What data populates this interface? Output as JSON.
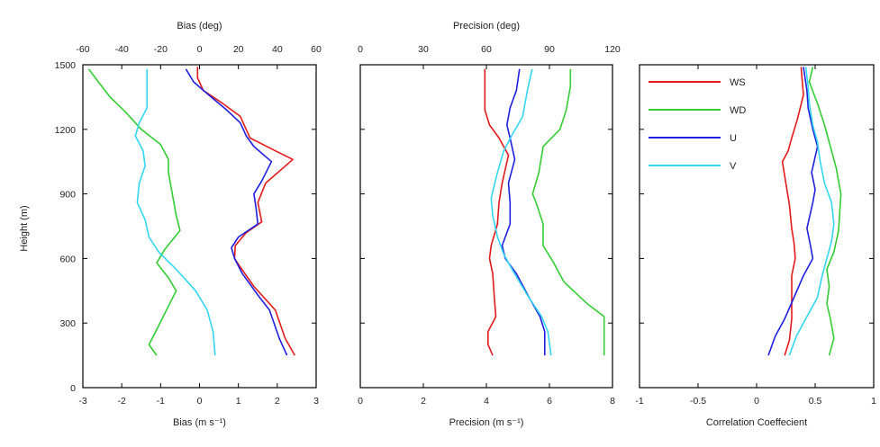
{
  "figure": {
    "ylabel": "Height (m)",
    "yticks": [
      0,
      300,
      600,
      900,
      1200,
      1500
    ],
    "ylim": [
      0,
      1500
    ]
  },
  "legend": [
    {
      "key": "WS",
      "color": "#e31a1c"
    },
    {
      "key": "WD",
      "color": "#33cc33"
    },
    {
      "key": "U",
      "color": "#1f1fe0"
    },
    {
      "key": "V",
      "color": "#33d6f0"
    }
  ],
  "chart_data": [
    {
      "type": "line",
      "xlabel": "Bias (m s⁻¹)",
      "xlim": [
        -3,
        3
      ],
      "xticks": [
        -3,
        -2,
        -1,
        0,
        1,
        2,
        3
      ],
      "top_xlabel": "Bias (deg)",
      "top_xlim": [
        -60,
        60
      ],
      "top_xticks": [
        -60,
        -40,
        -20,
        0,
        20,
        40,
        60
      ],
      "ylabel": "Height (m)",
      "ylim": [
        0,
        1500
      ],
      "series": [
        {
          "name": "WS",
          "axis": "bottom",
          "color": "#e31a1c",
          "points": [
            [
              2.45,
              150
            ],
            [
              2.2,
              230
            ],
            [
              1.95,
              360
            ],
            [
              1.4,
              470
            ],
            [
              1.05,
              560
            ],
            [
              0.9,
              600
            ],
            [
              0.92,
              660
            ],
            [
              1.2,
              720
            ],
            [
              1.6,
              770
            ],
            [
              1.5,
              860
            ],
            [
              1.7,
              950
            ],
            [
              2.4,
              1060
            ],
            [
              1.95,
              1100
            ],
            [
              1.3,
              1160
            ],
            [
              1.2,
              1200
            ],
            [
              1.05,
              1260
            ],
            [
              0.6,
              1320
            ],
            [
              0.1,
              1380
            ],
            [
              -0.05,
              1440
            ],
            [
              -0.05,
              1490
            ]
          ]
        },
        {
          "name": "WD",
          "axis": "top",
          "color": "#33cc33",
          "points": [
            [
              -22,
              150
            ],
            [
              -26,
              200
            ],
            [
              -22,
              270
            ],
            [
              -17,
              360
            ],
            [
              -12,
              450
            ],
            [
              -16,
              510
            ],
            [
              -22,
              580
            ],
            [
              -18,
              640
            ],
            [
              -10,
              730
            ],
            [
              -12,
              800
            ],
            [
              -14,
              900
            ],
            [
              -16,
              1000
            ],
            [
              -16,
              1060
            ],
            [
              -20,
              1130
            ],
            [
              -30,
              1200
            ],
            [
              -38,
              1280
            ],
            [
              -46,
              1350
            ],
            [
              -52,
              1420
            ],
            [
              -57,
              1480
            ]
          ]
        },
        {
          "name": "U",
          "axis": "bottom",
          "color": "#1f1fe0",
          "points": [
            [
              2.25,
              150
            ],
            [
              2.05,
              230
            ],
            [
              1.8,
              360
            ],
            [
              1.5,
              430
            ],
            [
              1.1,
              530
            ],
            [
              0.9,
              600
            ],
            [
              0.82,
              650
            ],
            [
              1.0,
              700
            ],
            [
              1.5,
              760
            ],
            [
              1.45,
              840
            ],
            [
              1.4,
              900
            ],
            [
              1.6,
              960
            ],
            [
              1.85,
              1050
            ],
            [
              1.4,
              1120
            ],
            [
              1.2,
              1170
            ],
            [
              1.05,
              1230
            ],
            [
              0.7,
              1290
            ],
            [
              0.3,
              1350
            ],
            [
              -0.15,
              1420
            ],
            [
              -0.35,
              1480
            ]
          ]
        },
        {
          "name": "V",
          "axis": "bottom",
          "color": "#33d6f0",
          "points": [
            [
              0.4,
              150
            ],
            [
              0.35,
              260
            ],
            [
              0.2,
              360
            ],
            [
              -0.1,
              450
            ],
            [
              -0.6,
              550
            ],
            [
              -1.05,
              630
            ],
            [
              -1.3,
              700
            ],
            [
              -1.4,
              780
            ],
            [
              -1.6,
              860
            ],
            [
              -1.55,
              950
            ],
            [
              -1.4,
              1030
            ],
            [
              -1.45,
              1100
            ],
            [
              -1.65,
              1170
            ],
            [
              -1.55,
              1230
            ],
            [
              -1.35,
              1300
            ],
            [
              -1.35,
              1400
            ],
            [
              -1.35,
              1480
            ]
          ]
        }
      ]
    },
    {
      "type": "line",
      "xlabel": "Precision (m s⁻¹)",
      "xlim": [
        0,
        8
      ],
      "xticks": [
        0,
        2,
        4,
        6,
        8
      ],
      "top_xlabel": "Precision (deg)",
      "top_xlim": [
        0,
        120
      ],
      "top_xticks": [
        0,
        30,
        60,
        90,
        120
      ],
      "series": [
        {
          "name": "WS",
          "axis": "bottom",
          "color": "#e31a1c",
          "points": [
            [
              4.2,
              150
            ],
            [
              4.05,
              200
            ],
            [
              4.05,
              260
            ],
            [
              4.3,
              330
            ],
            [
              4.25,
              420
            ],
            [
              4.2,
              530
            ],
            [
              4.1,
              600
            ],
            [
              4.15,
              660
            ],
            [
              4.35,
              760
            ],
            [
              4.4,
              860
            ],
            [
              4.5,
              950
            ],
            [
              4.7,
              1080
            ],
            [
              4.4,
              1160
            ],
            [
              4.1,
              1220
            ],
            [
              3.95,
              1290
            ],
            [
              3.95,
              1390
            ],
            [
              3.95,
              1480
            ]
          ]
        },
        {
          "name": "WD",
          "axis": "top",
          "color": "#33cc33",
          "points": [
            [
              116,
              150
            ],
            [
              116,
              250
            ],
            [
              116,
              330
            ],
            [
              108,
              390
            ],
            [
              97,
              490
            ],
            [
              92,
              580
            ],
            [
              87,
              660
            ],
            [
              87,
              760
            ],
            [
              84,
              850
            ],
            [
              82,
              900
            ],
            [
              85,
              1000
            ],
            [
              87,
              1120
            ],
            [
              95,
              1200
            ],
            [
              98,
              1290
            ],
            [
              100,
              1400
            ],
            [
              100,
              1480
            ]
          ]
        },
        {
          "name": "U",
          "axis": "bottom",
          "color": "#1f1fe0",
          "points": [
            [
              5.85,
              150
            ],
            [
              5.85,
              260
            ],
            [
              5.7,
              330
            ],
            [
              5.35,
              420
            ],
            [
              4.95,
              530
            ],
            [
              4.6,
              600
            ],
            [
              4.5,
              660
            ],
            [
              4.75,
              760
            ],
            [
              4.75,
              860
            ],
            [
              4.7,
              950
            ],
            [
              4.9,
              1060
            ],
            [
              4.75,
              1160
            ],
            [
              4.65,
              1220
            ],
            [
              4.75,
              1300
            ],
            [
              4.95,
              1380
            ],
            [
              5.05,
              1480
            ]
          ]
        },
        {
          "name": "V",
          "axis": "bottom",
          "color": "#33d6f0",
          "points": [
            [
              6.05,
              150
            ],
            [
              5.95,
              260
            ],
            [
              5.75,
              330
            ],
            [
              5.3,
              430
            ],
            [
              4.85,
              540
            ],
            [
              4.55,
              620
            ],
            [
              4.35,
              700
            ],
            [
              4.2,
              800
            ],
            [
              4.15,
              880
            ],
            [
              4.35,
              1000
            ],
            [
              4.55,
              1100
            ],
            [
              4.8,
              1170
            ],
            [
              5.15,
              1260
            ],
            [
              5.3,
              1380
            ],
            [
              5.45,
              1480
            ]
          ]
        }
      ]
    },
    {
      "type": "line",
      "xlabel": "Correlation Coeffecient",
      "xlim": [
        -1,
        1
      ],
      "xticks": [
        -1,
        -0.5,
        0,
        0.5,
        1
      ],
      "series": [
        {
          "name": "WS",
          "axis": "bottom",
          "color": "#e31a1c",
          "points": [
            [
              0.24,
              150
            ],
            [
              0.28,
              220
            ],
            [
              0.3,
              320
            ],
            [
              0.3,
              420
            ],
            [
              0.3,
              520
            ],
            [
              0.33,
              600
            ],
            [
              0.32,
              670
            ],
            [
              0.3,
              740
            ],
            [
              0.28,
              850
            ],
            [
              0.25,
              950
            ],
            [
              0.22,
              1050
            ],
            [
              0.27,
              1100
            ],
            [
              0.3,
              1160
            ],
            [
              0.35,
              1250
            ],
            [
              0.4,
              1360
            ],
            [
              0.38,
              1490
            ]
          ]
        },
        {
          "name": "WD",
          "axis": "bottom",
          "color": "#33cc33",
          "points": [
            [
              0.62,
              150
            ],
            [
              0.66,
              230
            ],
            [
              0.63,
              320
            ],
            [
              0.6,
              390
            ],
            [
              0.62,
              470
            ],
            [
              0.6,
              550
            ],
            [
              0.66,
              630
            ],
            [
              0.7,
              730
            ],
            [
              0.72,
              900
            ],
            [
              0.68,
              1020
            ],
            [
              0.64,
              1100
            ],
            [
              0.58,
              1220
            ],
            [
              0.52,
              1320
            ],
            [
              0.45,
              1420
            ],
            [
              0.48,
              1490
            ]
          ]
        },
        {
          "name": "U",
          "axis": "bottom",
          "color": "#1f1fe0",
          "points": [
            [
              0.1,
              150
            ],
            [
              0.16,
              240
            ],
            [
              0.24,
              320
            ],
            [
              0.32,
              420
            ],
            [
              0.4,
              520
            ],
            [
              0.48,
              600
            ],
            [
              0.46,
              660
            ],
            [
              0.43,
              740
            ],
            [
              0.48,
              860
            ],
            [
              0.5,
              920
            ],
            [
              0.47,
              1000
            ],
            [
              0.52,
              1120
            ],
            [
              0.48,
              1200
            ],
            [
              0.44,
              1300
            ],
            [
              0.43,
              1380
            ],
            [
              0.4,
              1490
            ]
          ]
        },
        {
          "name": "V",
          "axis": "bottom",
          "color": "#33d6f0",
          "points": [
            [
              0.28,
              150
            ],
            [
              0.34,
              240
            ],
            [
              0.44,
              340
            ],
            [
              0.52,
              420
            ],
            [
              0.56,
              520
            ],
            [
              0.6,
              600
            ],
            [
              0.64,
              680
            ],
            [
              0.66,
              760
            ],
            [
              0.64,
              860
            ],
            [
              0.58,
              950
            ],
            [
              0.54,
              1060
            ],
            [
              0.52,
              1140
            ],
            [
              0.48,
              1220
            ],
            [
              0.45,
              1320
            ],
            [
              0.44,
              1400
            ],
            [
              0.42,
              1490
            ]
          ]
        }
      ]
    }
  ]
}
